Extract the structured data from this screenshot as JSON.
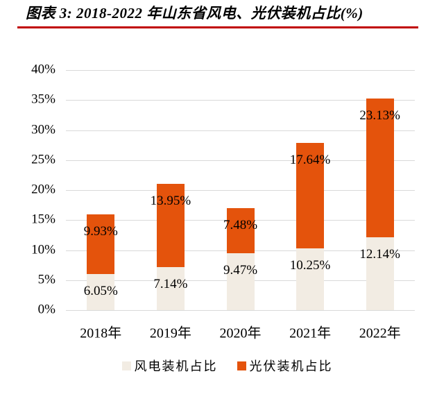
{
  "header": {
    "title": "图表 3: 2018-2022 年山东省风电、光伏装机占比(%)"
  },
  "colors": {
    "wind": "#F2ECE3",
    "solar": "#E4530C",
    "title_underline": "#C00000",
    "gridline": "#D9D9D9",
    "text": "#000000"
  },
  "chart_data": {
    "type": "bar",
    "stacked": true,
    "title": "2018-2022 年山东省风电、光伏装机占比(%)",
    "categories": [
      "2018年",
      "2019年",
      "2020年",
      "2021年",
      "2022年"
    ],
    "series": [
      {
        "name": "风电装机占比",
        "color_key": "wind",
        "values": [
          6.05,
          7.14,
          9.47,
          10.25,
          12.14
        ],
        "data_labels": [
          "6.05%",
          "7.14%",
          "9.47%",
          "10.25%",
          "12.14%"
        ]
      },
      {
        "name": "光伏装机占比",
        "color_key": "solar",
        "values": [
          9.93,
          13.95,
          7.48,
          17.64,
          23.13
        ],
        "data_labels": [
          "9.93%",
          "13.95%",
          "7.48%",
          "17.64%",
          "23.13%"
        ]
      }
    ],
    "totals": [
      15.98,
      21.09,
      16.95,
      27.89,
      35.27
    ],
    "y_axis": {
      "min": 0,
      "max": 40,
      "step": 5,
      "tick_labels": [
        "0%",
        "5%",
        "10%",
        "15%",
        "20%",
        "25%",
        "30%",
        "35%",
        "40%"
      ],
      "grid": true
    },
    "xlabel": "",
    "ylabel": "",
    "legend": {
      "position": "bottom",
      "items": [
        {
          "label": "风电装机占比",
          "color_key": "wind"
        },
        {
          "label": "光伏装机占比",
          "color_key": "solar"
        }
      ]
    }
  }
}
